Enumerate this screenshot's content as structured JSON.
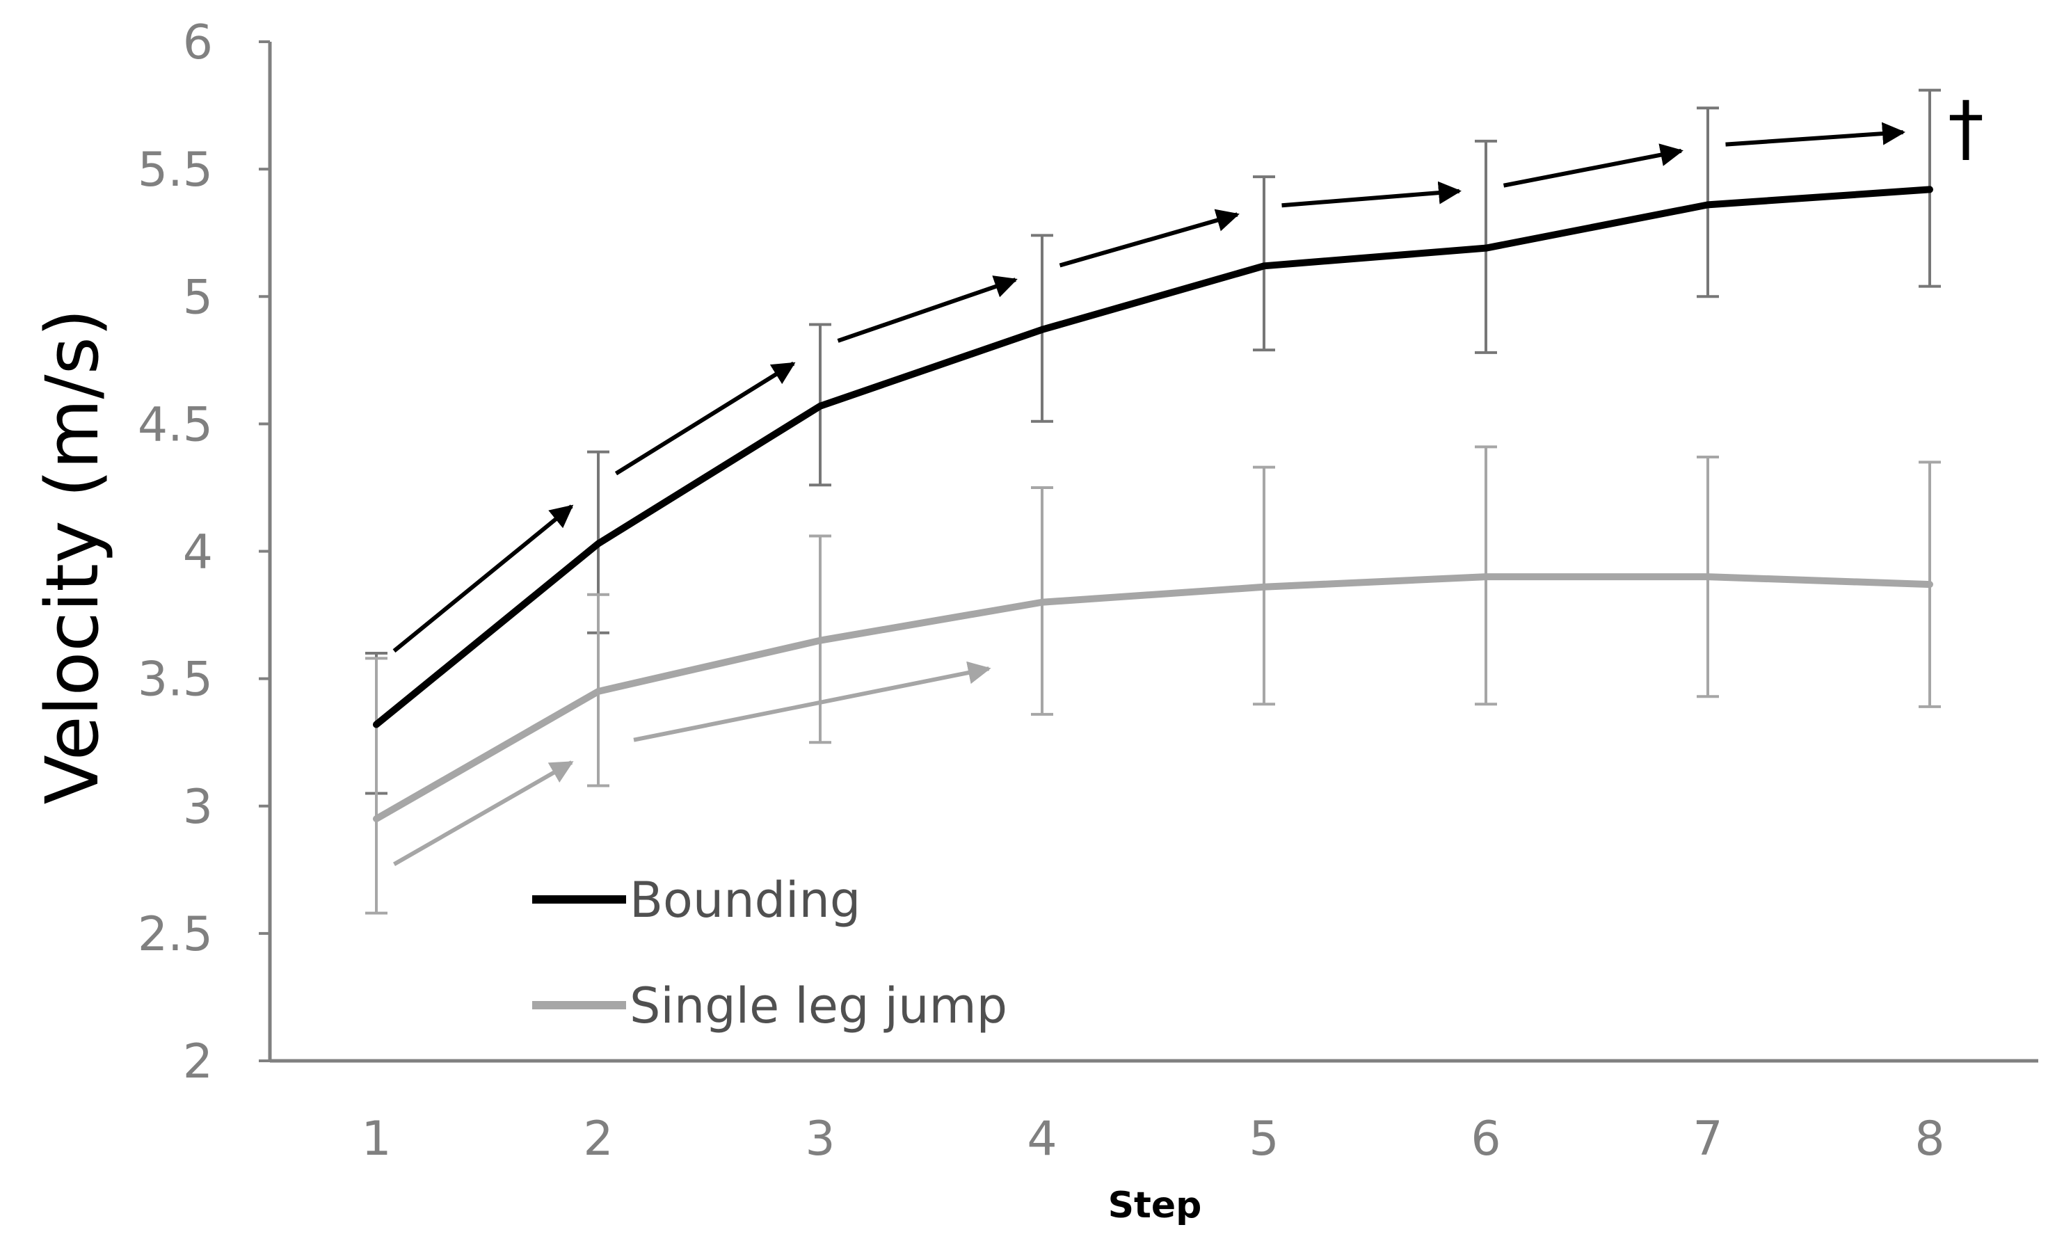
{
  "chart_data": {
    "type": "line",
    "title": "",
    "xlabel": "Step",
    "ylabel": "Velocity (m/s)",
    "x": [
      1,
      2,
      3,
      4,
      5,
      6,
      7,
      8
    ],
    "ylim": [
      2,
      6
    ],
    "yticks": [
      "2",
      "2.5",
      "3",
      "3.5",
      "4",
      "4.5",
      "5",
      "5.5",
      "6"
    ],
    "xticks": [
      "1",
      "2",
      "3",
      "4",
      "5",
      "6",
      "7",
      "8"
    ],
    "grid": false,
    "legend_position": "bottom-left",
    "series": [
      {
        "name": "Bounding",
        "color": "#000000",
        "values": [
          3.32,
          4.03,
          4.57,
          4.87,
          5.12,
          5.19,
          5.36,
          5.42
        ],
        "error_low": [
          3.05,
          3.68,
          4.26,
          4.51,
          4.79,
          4.78,
          5.0,
          5.04
        ],
        "error_high": [
          3.6,
          4.39,
          4.89,
          5.24,
          5.47,
          5.61,
          5.74,
          5.81
        ]
      },
      {
        "name": "Single leg jump",
        "color": "#a6a6a6",
        "values": [
          2.95,
          3.45,
          3.65,
          3.8,
          3.86,
          3.9,
          3.9,
          3.87
        ],
        "error_low": [
          2.58,
          3.08,
          3.25,
          3.36,
          3.4,
          3.4,
          3.43,
          3.39
        ],
        "error_high": [
          3.58,
          3.83,
          4.06,
          4.25,
          4.33,
          4.41,
          4.37,
          4.35
        ]
      }
    ],
    "arrows": [
      {
        "series": "Bounding",
        "from_step": 1,
        "to_step": 2
      },
      {
        "series": "Bounding",
        "from_step": 2,
        "to_step": 3
      },
      {
        "series": "Bounding",
        "from_step": 3,
        "to_step": 4
      },
      {
        "series": "Bounding",
        "from_step": 4,
        "to_step": 5
      },
      {
        "series": "Bounding",
        "from_step": 5,
        "to_step": 6
      },
      {
        "series": "Bounding",
        "from_step": 6,
        "to_step": 7
      },
      {
        "series": "Bounding",
        "from_step": 7,
        "to_step": 8
      },
      {
        "series": "Single leg jump",
        "from_step": 1,
        "to_step": 2
      },
      {
        "series": "Single leg jump",
        "from_step": 2,
        "to_step": 4
      }
    ],
    "annotation": {
      "text": "†",
      "near_series": "Bounding",
      "at_step": 8
    }
  }
}
